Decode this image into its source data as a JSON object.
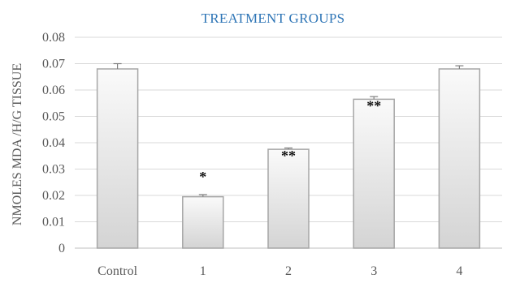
{
  "chart_data": {
    "type": "bar",
    "title": "TREATMENT GROUPS",
    "xlabel": "",
    "ylabel": "NMOLES MDA /H/G TISSUE",
    "categories": [
      "Control",
      "1",
      "2",
      "3",
      "4"
    ],
    "values": [
      0.068,
      0.0195,
      0.0375,
      0.0565,
      0.068
    ],
    "errors": [
      0.002,
      0.0008,
      0.0005,
      0.001,
      0.0012
    ],
    "annotations": [
      "",
      "*",
      "**",
      "**",
      ""
    ],
    "ylim": [
      0,
      0.08
    ],
    "yticks": [
      "0",
      "0.01",
      "0.02",
      "0.03",
      "0.04",
      "0.05",
      "0.06",
      "0.07",
      "0.08"
    ],
    "grid": true,
    "legend": "none",
    "colors": {
      "title": "#2E75B6",
      "bar_fill_light": "#FAFAFA",
      "bar_fill_dark": "#D4D4D4",
      "bar_stroke": "#A6A6A6",
      "grid": "#D9D9D9",
      "axis": "#BFBFBF",
      "error_bar": "#7F7F7F",
      "tick_text": "#595959"
    }
  }
}
